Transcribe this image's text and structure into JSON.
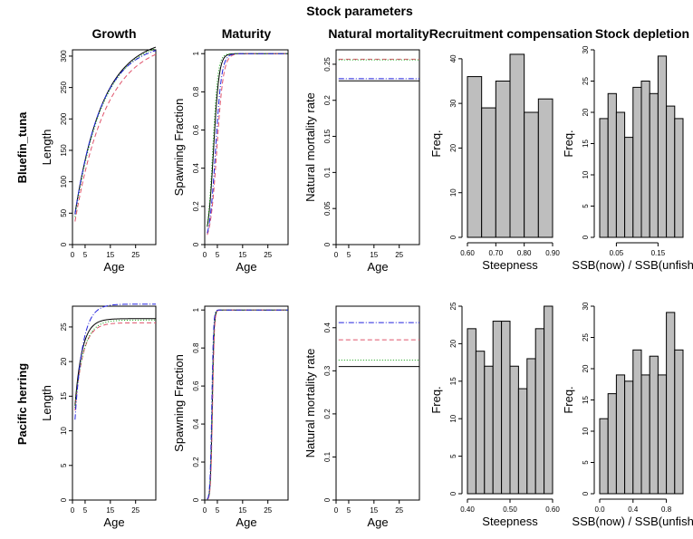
{
  "figure": {
    "title": "Stock parameters",
    "column_titles": [
      "Growth",
      "Maturity",
      "Natural mortality",
      "Recruitment compensation",
      "Stock depletion"
    ],
    "row_titles": [
      "Bluefin_tuna",
      "Pacific herring"
    ]
  },
  "colors": {
    "series": [
      "#000000",
      "#DF536B",
      "#0A9E0A",
      "#2222DD"
    ],
    "bar_fill": "#BEBEBE"
  },
  "chart_data": [
    {
      "id": "tuna-growth",
      "type": "line",
      "xlabel": "Age",
      "ylabel": "Length",
      "xlim": [
        0,
        33
      ],
      "ylim": [
        0,
        310
      ],
      "xticks": [
        0,
        5,
        15,
        25
      ],
      "yticks": [
        0,
        50,
        100,
        150,
        200,
        250,
        300
      ],
      "curve": "vb",
      "age_range": [
        1,
        33
      ],
      "series": [
        {
          "linf": 330,
          "k": 0.09,
          "t0": -0.8,
          "dash": "solid"
        },
        {
          "linf": 325,
          "k": 0.08,
          "t0": -0.5,
          "dash": "dashed"
        },
        {
          "linf": 328,
          "k": 0.09,
          "t0": -0.6,
          "dash": "dotted"
        },
        {
          "linf": 322,
          "k": 0.095,
          "t0": -0.7,
          "dash": "dotdash"
        }
      ]
    },
    {
      "id": "tuna-maturity",
      "type": "line",
      "xlabel": "Age",
      "ylabel": "Spawning Fraction",
      "xlim": [
        0,
        33
      ],
      "ylim": [
        0,
        1.02
      ],
      "xticks": [
        0,
        5,
        15,
        25
      ],
      "yticks": [
        0,
        0.2,
        0.4,
        0.6,
        0.8,
        1.0
      ],
      "curve": "logistic",
      "age_range": [
        1,
        33
      ],
      "series": [
        {
          "a50": 3.5,
          "s": 1.1,
          "dash": "solid"
        },
        {
          "a50": 4.8,
          "s": 1.3,
          "dash": "dashed"
        },
        {
          "a50": 3.2,
          "s": 1.0,
          "dash": "dotted"
        },
        {
          "a50": 4.3,
          "s": 1.2,
          "dash": "dotdash"
        }
      ]
    },
    {
      "id": "tuna-mortality",
      "type": "line",
      "xlabel": "Age",
      "ylabel": "Natural mortality rate",
      "xlim": [
        0,
        33
      ],
      "ylim": [
        0,
        0.27
      ],
      "xticks": [
        0,
        5,
        15,
        25
      ],
      "yticks": [
        0,
        0.05,
        0.1,
        0.15,
        0.2,
        0.25
      ],
      "curve": "constant",
      "age_range": [
        1,
        33
      ],
      "series": [
        {
          "value": 0.227,
          "dash": "solid"
        },
        {
          "value": 0.257,
          "dash": "dashed"
        },
        {
          "value": 0.256,
          "dash": "dotted"
        },
        {
          "value": 0.23,
          "dash": "dotdash"
        }
      ]
    },
    {
      "id": "tuna-steepness",
      "type": "bar",
      "xlabel": "Steepness",
      "ylabel": "Freq.",
      "bin_edges": [
        0.6,
        0.65,
        0.7,
        0.75,
        0.8,
        0.85,
        0.9
      ],
      "values": [
        36,
        29,
        35,
        41,
        28,
        31
      ],
      "xlim": [
        0.6,
        0.9
      ],
      "ylim": [
        0,
        42
      ],
      "xticks": [
        0.6,
        0.7,
        0.8,
        0.9
      ],
      "xtick_labels": [
        "0.60",
        "0.70",
        "0.80",
        "0.90"
      ],
      "yticks": [
        0,
        10,
        20,
        30,
        40
      ]
    },
    {
      "id": "tuna-depletion",
      "type": "bar",
      "xlabel": "SSB(now) / SSB(unfished)",
      "ylabel": "Freq.",
      "bin_edges": [
        0.01,
        0.03,
        0.05,
        0.07,
        0.09,
        0.11,
        0.13,
        0.15,
        0.17,
        0.19,
        0.21
      ],
      "values": [
        19,
        23,
        20,
        16,
        24,
        25,
        23,
        29,
        21,
        19
      ],
      "xlim": [
        0.01,
        0.21
      ],
      "ylim": [
        0,
        30
      ],
      "xticks": [
        0.05,
        0.15
      ],
      "xtick_labels": [
        "0.05",
        "0.15"
      ],
      "yticks": [
        0,
        5,
        10,
        15,
        20,
        25,
        30
      ]
    },
    {
      "id": "herring-growth",
      "type": "line",
      "xlabel": "Age",
      "ylabel": "Length",
      "xlim": [
        0,
        33
      ],
      "ylim": [
        0,
        28
      ],
      "xticks": [
        0,
        5,
        15,
        25
      ],
      "yticks": [
        0,
        5,
        10,
        15,
        20,
        25
      ],
      "curve": "vb",
      "age_range": [
        1,
        33
      ],
      "series": [
        {
          "linf": 26.2,
          "k": 0.35,
          "t0": -1.1,
          "dash": "solid"
        },
        {
          "linf": 25.6,
          "k": 0.32,
          "t0": -1.2,
          "dash": "dashed"
        },
        {
          "linf": 26.0,
          "k": 0.3,
          "t0": -1.4,
          "dash": "dotted"
        },
        {
          "linf": 28.3,
          "k": 0.33,
          "t0": -0.6,
          "dash": "dotdash"
        }
      ]
    },
    {
      "id": "herring-maturity",
      "type": "line",
      "xlabel": "Age",
      "ylabel": "Spawning Fraction",
      "xlim": [
        0,
        33
      ],
      "ylim": [
        0,
        1.02
      ],
      "xticks": [
        0,
        5,
        15,
        25
      ],
      "yticks": [
        0,
        0.2,
        0.4,
        0.6,
        0.8,
        1.0
      ],
      "curve": "logistic",
      "age_range": [
        1,
        33
      ],
      "series": [
        {
          "a50": 3.0,
          "s": 0.35,
          "dash": "solid"
        },
        {
          "a50": 3.1,
          "s": 0.35,
          "dash": "dashed"
        },
        {
          "a50": 2.9,
          "s": 0.33,
          "dash": "dotted"
        },
        {
          "a50": 2.8,
          "s": 0.33,
          "dash": "dotdash"
        }
      ]
    },
    {
      "id": "herring-mortality",
      "type": "line",
      "xlabel": "Age",
      "ylabel": "Natural mortality rate",
      "xlim": [
        0,
        33
      ],
      "ylim": [
        0,
        0.45
      ],
      "xticks": [
        0,
        5,
        15,
        25
      ],
      "yticks": [
        0,
        0.1,
        0.2,
        0.3,
        0.4
      ],
      "curve": "constant",
      "age_range": [
        1,
        33
      ],
      "series": [
        {
          "value": 0.31,
          "dash": "solid"
        },
        {
          "value": 0.372,
          "dash": "dashed"
        },
        {
          "value": 0.325,
          "dash": "dotted"
        },
        {
          "value": 0.412,
          "dash": "dotdash"
        }
      ]
    },
    {
      "id": "herring-steepness",
      "type": "bar",
      "xlabel": "Steepness",
      "ylabel": "Freq.",
      "bin_edges": [
        0.4,
        0.42,
        0.44,
        0.46,
        0.48,
        0.5,
        0.52,
        0.54,
        0.56,
        0.58,
        0.6
      ],
      "values": [
        22,
        19,
        17,
        23,
        23,
        17,
        14,
        18,
        22,
        25
      ],
      "xlim": [
        0.4,
        0.6
      ],
      "ylim": [
        0,
        25
      ],
      "xticks": [
        0.4,
        0.5,
        0.6
      ],
      "xtick_labels": [
        "0.40",
        "0.50",
        "0.60"
      ],
      "yticks": [
        0,
        5,
        10,
        15,
        20,
        25
      ]
    },
    {
      "id": "herring-depletion",
      "type": "bar",
      "xlabel": "SSB(now) / SSB(unfished)",
      "ylabel": "Freq.",
      "bin_edges": [
        0.0,
        0.1,
        0.2,
        0.3,
        0.4,
        0.5,
        0.6,
        0.7,
        0.8,
        0.9,
        1.0
      ],
      "values": [
        12,
        16,
        19,
        18,
        23,
        19,
        22,
        19,
        29,
        23
      ],
      "xlim": [
        0.0,
        1.0
      ],
      "ylim": [
        0,
        30
      ],
      "xticks": [
        0.0,
        0.4,
        0.8
      ],
      "xtick_labels": [
        "0.0",
        "0.4",
        "0.8"
      ],
      "yticks": [
        0,
        5,
        10,
        15,
        20,
        25,
        30
      ]
    }
  ]
}
